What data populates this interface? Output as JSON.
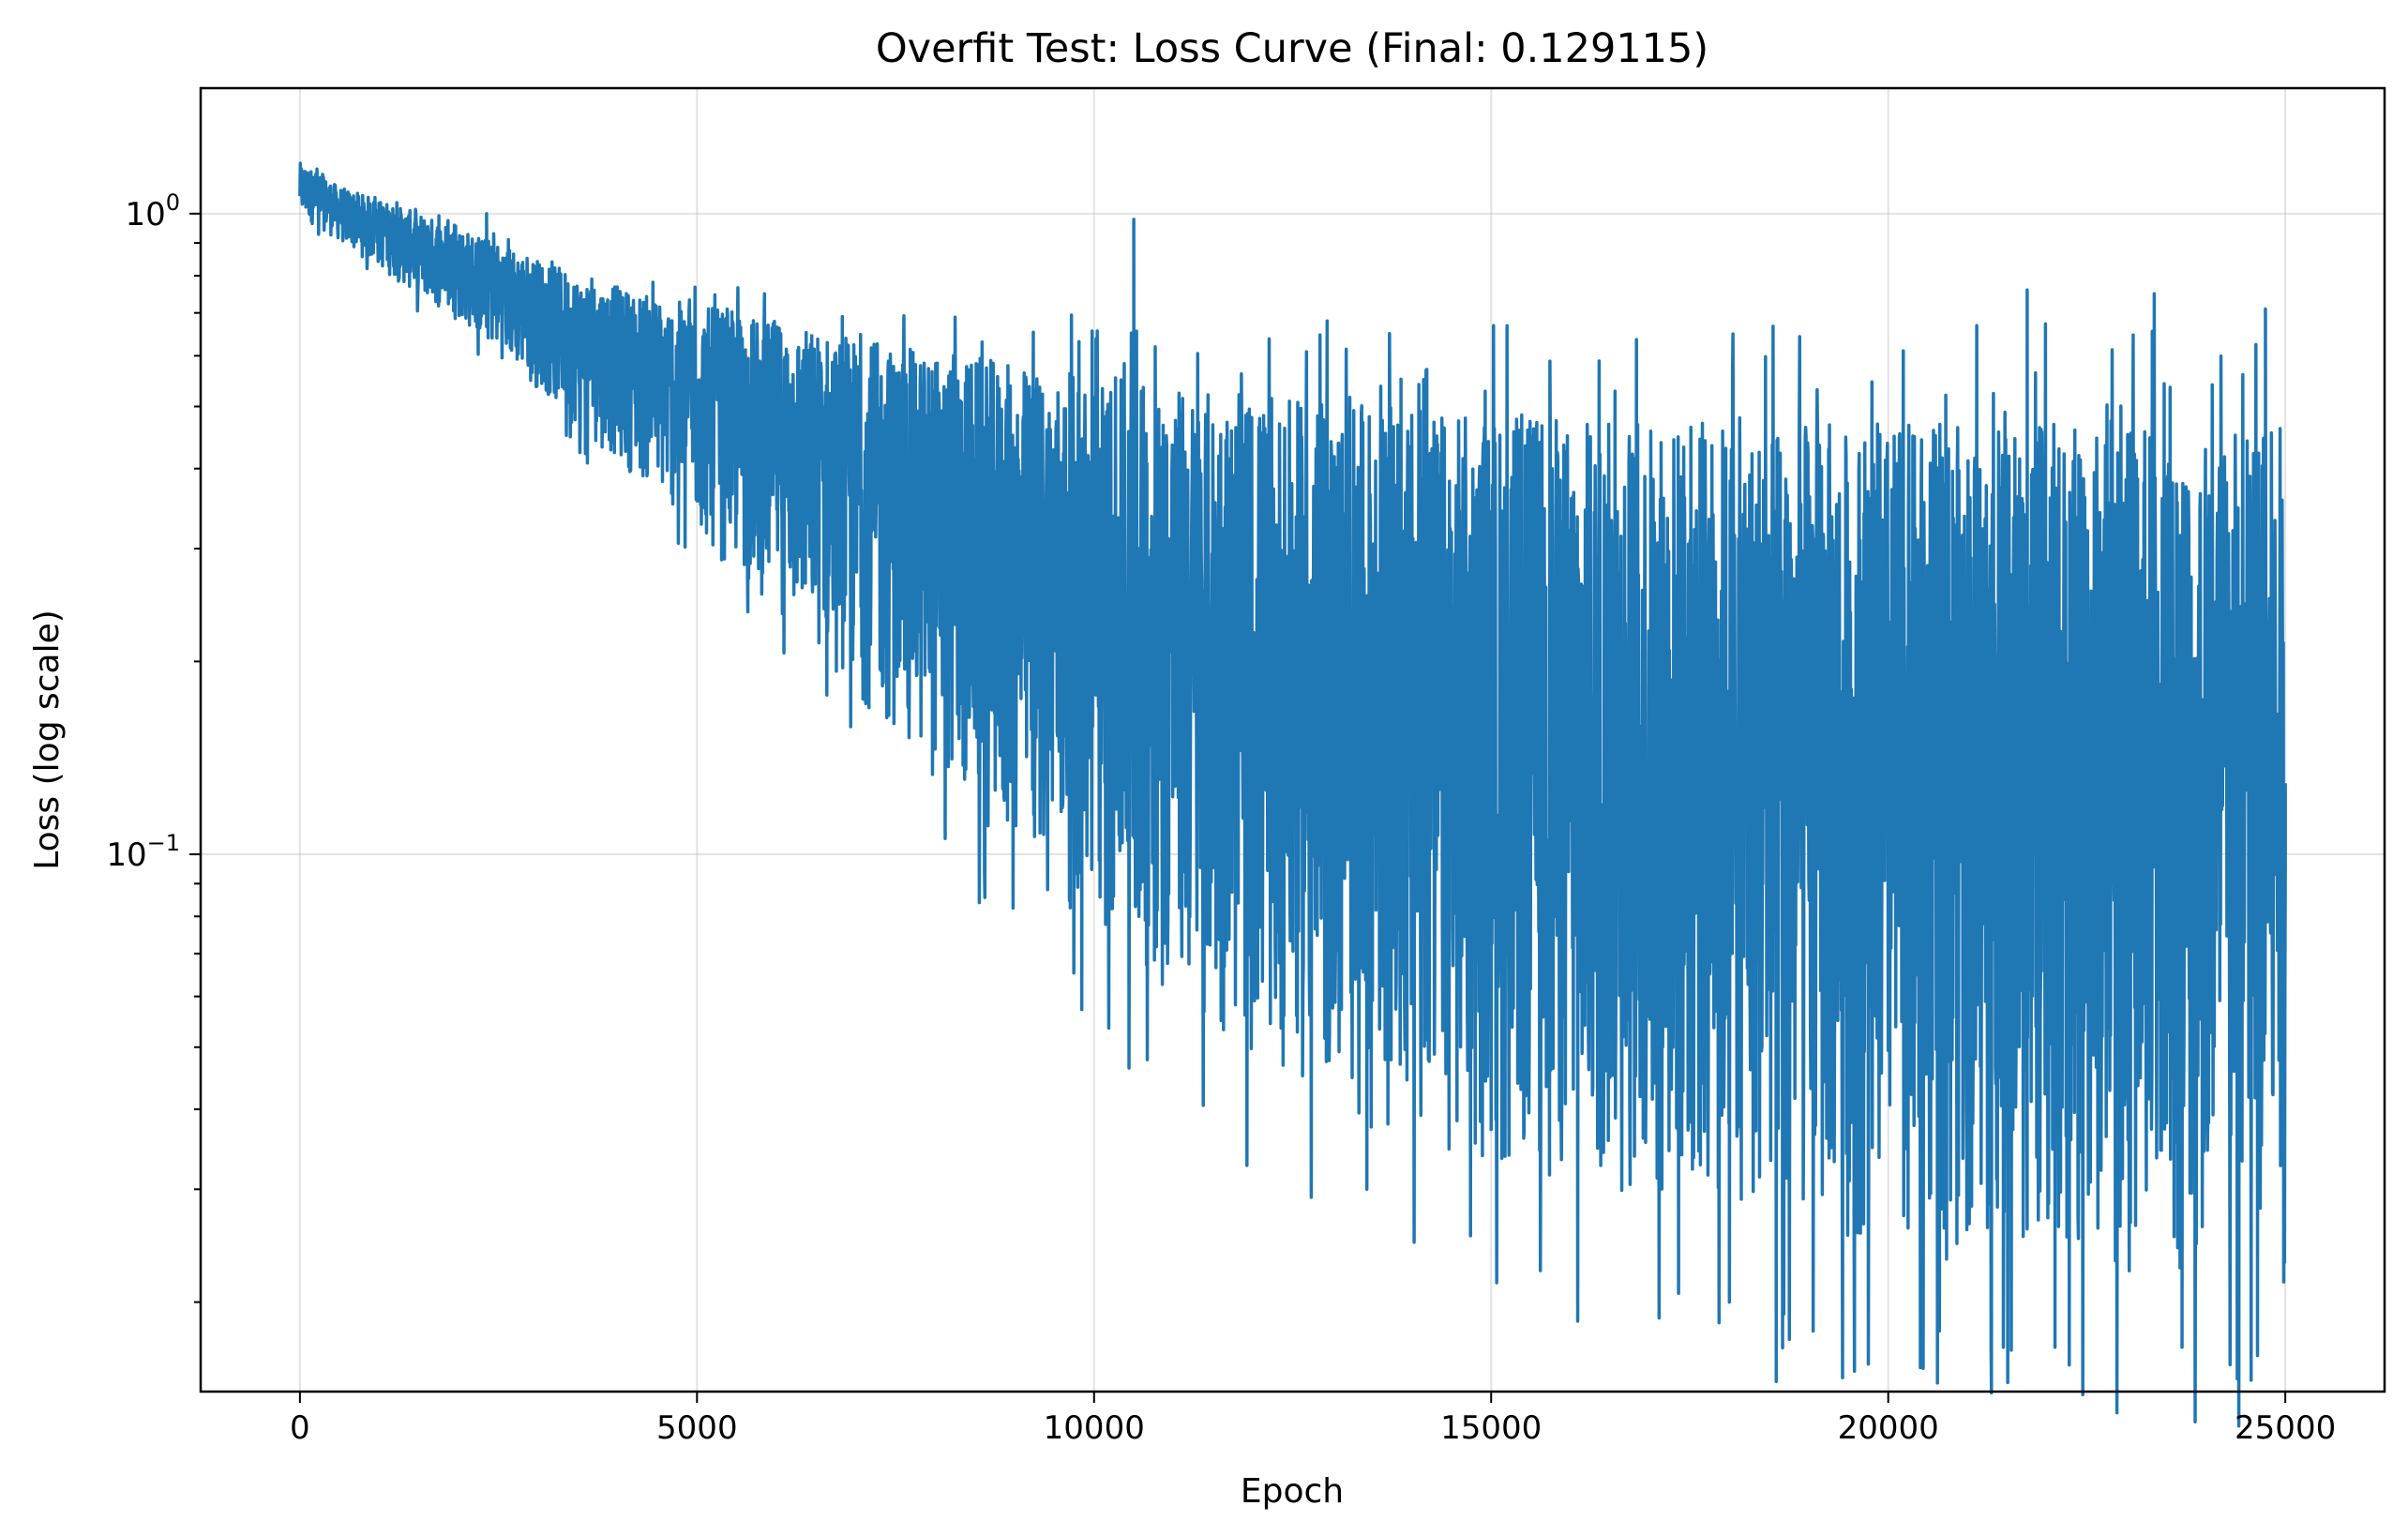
{
  "chart_data": {
    "type": "line",
    "title": "Overfit Test: Loss Curve (Final: 0.129115)",
    "xlabel": "Epoch",
    "ylabel": "Loss (log scale)",
    "yscale": "log",
    "xlim": [
      -1250,
      26250
    ],
    "ylim": [
      0.0145,
      1.57
    ],
    "grid": true,
    "line_color": "#1f77b4",
    "x_ticks": [
      {
        "value": 0,
        "label": "0"
      },
      {
        "value": 5000,
        "label": "5000"
      },
      {
        "value": 10000,
        "label": "10000"
      },
      {
        "value": 15000,
        "label": "15000"
      },
      {
        "value": 20000,
        "label": "20000"
      },
      {
        "value": 25000,
        "label": "25000"
      }
    ],
    "y_ticks": [
      {
        "value": 1,
        "base": "10",
        "exponent": "0"
      },
      {
        "value": 0.1,
        "base": "10",
        "exponent": "−1"
      }
    ],
    "series": [
      {
        "envelope_upper": {
          "x": [
            0,
            250,
            500,
            1000,
            1500,
            2000,
            2500,
            3000,
            3500,
            4000,
            4500,
            5000,
            5500,
            6000,
            6500,
            7000,
            7500,
            8000,
            8500,
            9000,
            9500,
            10000,
            10500,
            11000,
            11500,
            12000,
            12500,
            13000,
            13500,
            14000,
            14500,
            15000,
            15500,
            16000,
            16500,
            17000,
            17500,
            18000,
            18500,
            19000,
            19500,
            20000,
            20500,
            21000,
            21500,
            22000,
            22500,
            23000,
            23500,
            24000,
            24500,
            25000
          ],
          "y": [
            1.2,
            1.15,
            1.1,
            1.05,
            1.0,
            0.95,
            0.9,
            0.85,
            0.8,
            0.77,
            0.74,
            0.72,
            0.7,
            0.68,
            0.66,
            0.64,
            0.62,
            0.61,
            0.6,
            0.58,
            0.57,
            0.56,
            0.55,
            0.54,
            0.53,
            0.52,
            0.51,
            0.51,
            0.5,
            0.5,
            0.49,
            0.49,
            0.49,
            0.48,
            0.48,
            0.48,
            0.48,
            0.48,
            0.48,
            0.48,
            0.47,
            0.47,
            0.47,
            0.47,
            0.47,
            0.47,
            0.47,
            0.47,
            0.47,
            0.47,
            0.47,
            0.47
          ]
        },
        "envelope_lower": {
          "x": [
            0,
            250,
            500,
            1000,
            1500,
            2000,
            2500,
            3000,
            3500,
            4000,
            4500,
            5000,
            5500,
            6000,
            6500,
            7000,
            7500,
            8000,
            8500,
            9000,
            9500,
            10000,
            10500,
            11000,
            11500,
            12000,
            12500,
            13000,
            13500,
            14000,
            14500,
            15000,
            15500,
            16000,
            16500,
            17000,
            17500,
            18000,
            18500,
            19000,
            19500,
            20000,
            20500,
            21000,
            21500,
            22000,
            22500,
            23000,
            23500,
            24000,
            24500,
            25000
          ],
          "y": [
            0.98,
            0.95,
            0.9,
            0.82,
            0.74,
            0.68,
            0.6,
            0.53,
            0.46,
            0.41,
            0.36,
            0.31,
            0.27,
            0.24,
            0.205,
            0.175,
            0.15,
            0.128,
            0.112,
            0.098,
            0.085,
            0.074,
            0.066,
            0.059,
            0.053,
            0.048,
            0.044,
            0.04,
            0.037,
            0.035,
            0.033,
            0.031,
            0.03,
            0.029,
            0.028,
            0.0275,
            0.027,
            0.026,
            0.0255,
            0.025,
            0.0245,
            0.024,
            0.0235,
            0.023,
            0.0228,
            0.0225,
            0.0222,
            0.022,
            0.0218,
            0.0216,
            0.0214,
            0.0212
          ]
        },
        "spikes": {
          "x": [
            2350,
            10500,
            21750,
            23350,
            24750
          ],
          "y": [
            1.0,
            0.98,
            0.76,
            0.75,
            0.71
          ]
        },
        "dips": {
          "x": [
            18000,
            21450,
            22100,
            23700,
            24650
          ],
          "y": [
            0.02,
            0.017,
            0.017,
            0.017,
            0.0165
          ]
        },
        "final": {
          "x": 25000,
          "y": 0.129115
        }
      }
    ]
  }
}
